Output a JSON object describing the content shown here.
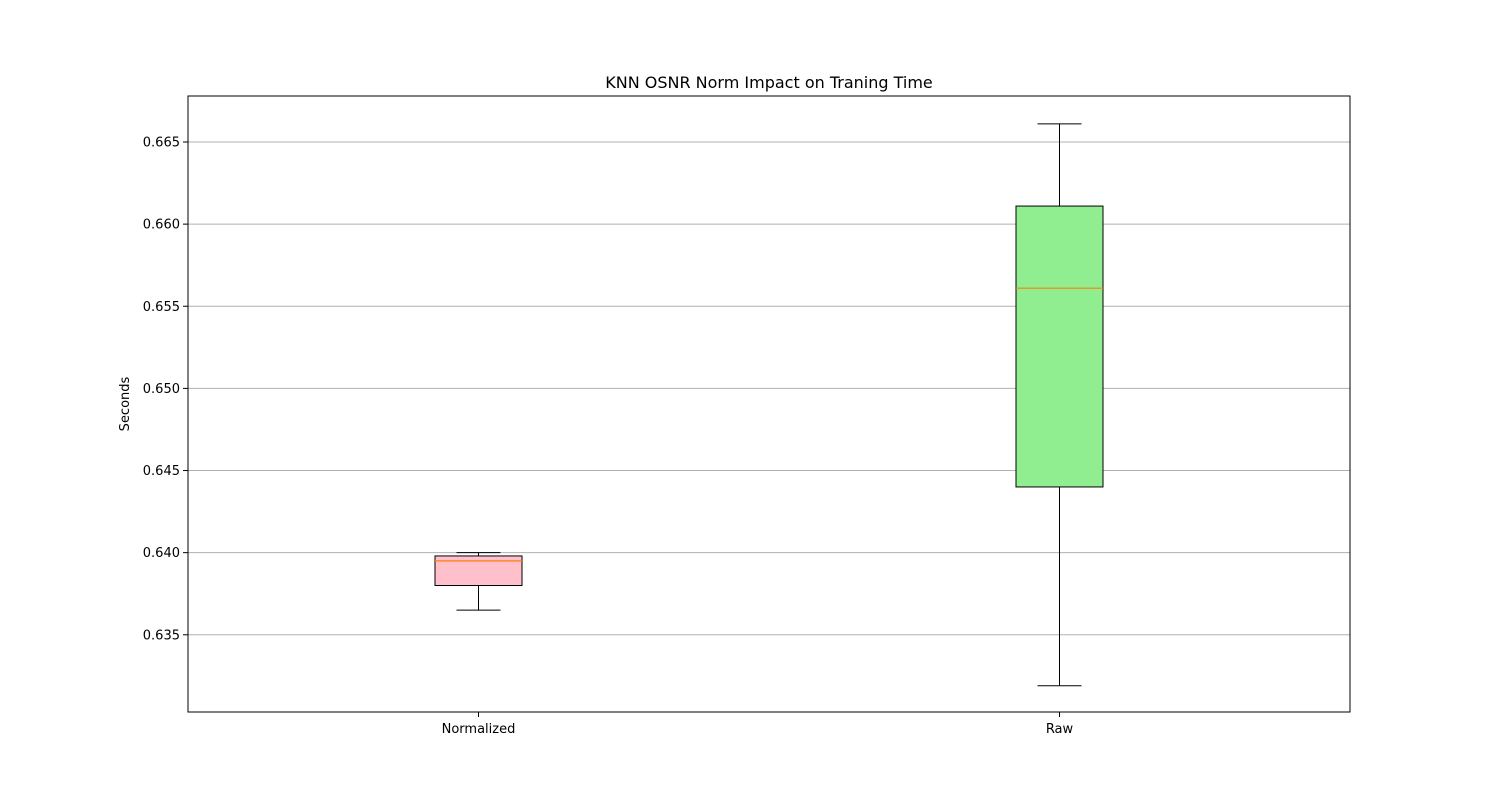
{
  "chart_data": {
    "type": "box",
    "title": "KNN OSNR Norm Impact on Traning Time",
    "xlabel": "",
    "ylabel": "Seconds",
    "ylim": [
      0.6303,
      0.6678
    ],
    "yticks": [
      0.635,
      0.64,
      0.645,
      0.65,
      0.655,
      0.66,
      0.665
    ],
    "ytick_labels": [
      "0.635",
      "0.640",
      "0.645",
      "0.650",
      "0.655",
      "0.660",
      "0.665"
    ],
    "grid": "y",
    "categories": [
      "Normalized",
      "Raw"
    ],
    "boxes": [
      {
        "category": "Normalized",
        "whisker_low": 0.6365,
        "q1": 0.638,
        "median": 0.6395,
        "q3": 0.6398,
        "whisker_high": 0.64,
        "fill": "#ffc0cb"
      },
      {
        "category": "Raw",
        "whisker_low": 0.6319,
        "q1": 0.644,
        "median": 0.6561,
        "q3": 0.6611,
        "whisker_high": 0.6661,
        "fill": "#90ee90"
      }
    ],
    "median_color": "#ff7f0e"
  }
}
